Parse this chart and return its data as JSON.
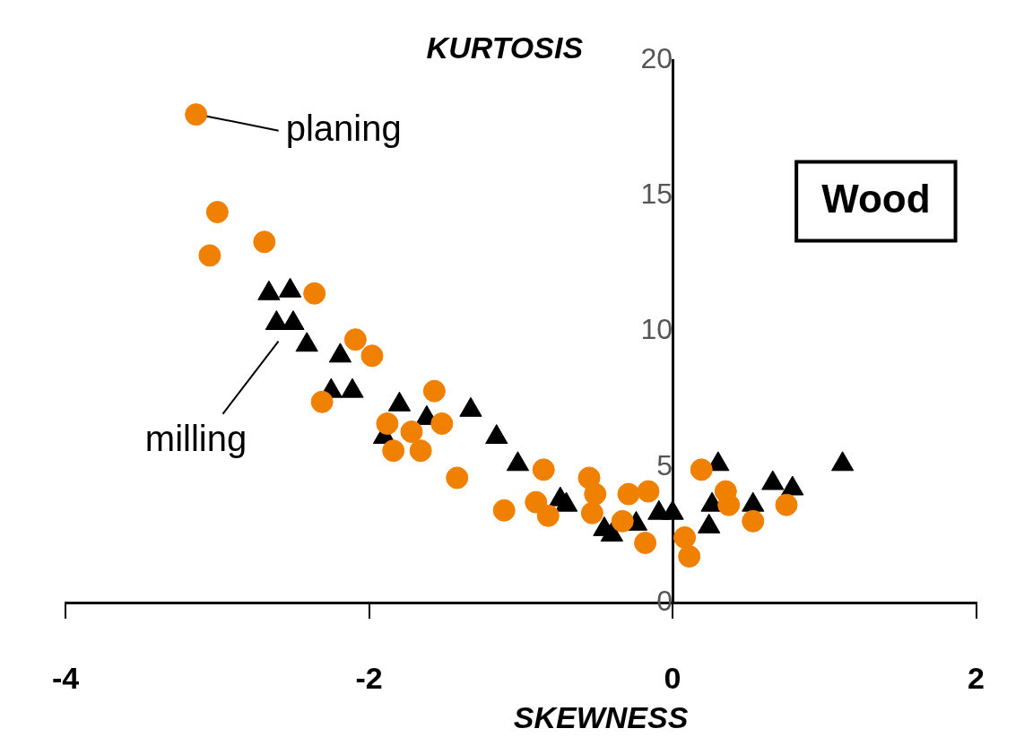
{
  "chart_data": {
    "type": "scatter",
    "xlabel": "SKEWNESS",
    "ylabel": "KURTOSIS",
    "xlim": [
      -4,
      2
    ],
    "xticks": [
      -4,
      -2,
      0,
      2
    ],
    "ylim": [
      0,
      20
    ],
    "yticks": [
      0,
      5,
      10,
      15,
      20
    ],
    "grid": false,
    "legend": false,
    "annotations": [
      {
        "text": "planing",
        "x": -3.14,
        "y": 18.0
      },
      {
        "text": "milling",
        "x": -2.55,
        "y": 10.1
      },
      "Wood"
    ],
    "series": [
      {
        "color": "#f08000",
        "marker": "circle",
        "x": [
          -3.14,
          -3.0,
          -3.05,
          -2.69,
          -2.36,
          -2.09,
          -1.98,
          -2.31,
          -1.57,
          -1.88,
          -1.72,
          -1.52,
          -1.84,
          -1.66,
          -1.42,
          -1.11,
          -0.85,
          -0.9,
          -0.82,
          -0.55,
          -0.51,
          -0.53,
          -0.29,
          -0.16,
          -0.33,
          -0.18,
          0.08,
          0.11,
          0.19,
          0.35,
          0.37,
          0.53,
          0.75
        ],
        "values": [
          18.0,
          14.4,
          12.8,
          13.3,
          11.4,
          9.7,
          9.1,
          7.4,
          7.8,
          6.6,
          6.3,
          6.6,
          5.6,
          5.6,
          4.6,
          3.4,
          4.9,
          3.7,
          3.2,
          4.6,
          4.0,
          3.3,
          4.0,
          4.1,
          3.0,
          2.2,
          2.4,
          1.7,
          4.9,
          4.1,
          3.6,
          3.0,
          3.6
        ]
      },
      {
        "color": "#000000",
        "marker": "triangle",
        "x": [
          -2.66,
          -2.52,
          -2.61,
          -2.5,
          -2.41,
          -2.19,
          -2.25,
          -2.11,
          -1.8,
          -1.62,
          -1.9,
          -1.33,
          -1.16,
          -1.02,
          -0.74,
          -0.7,
          -0.45,
          -0.4,
          -0.27,
          -0.24,
          -0.09,
          0.0,
          0.26,
          0.3,
          0.24,
          0.53,
          0.66,
          0.79,
          1.12
        ],
        "values": [
          11.4,
          11.5,
          10.3,
          10.3,
          9.5,
          9.1,
          7.8,
          7.8,
          7.3,
          6.8,
          6.1,
          7.1,
          6.1,
          5.1,
          3.8,
          3.6,
          2.7,
          2.5,
          null,
          2.9,
          3.3,
          3.3,
          3.6,
          5.1,
          2.8,
          3.6,
          4.4,
          4.2,
          5.1
        ]
      }
    ]
  }
}
